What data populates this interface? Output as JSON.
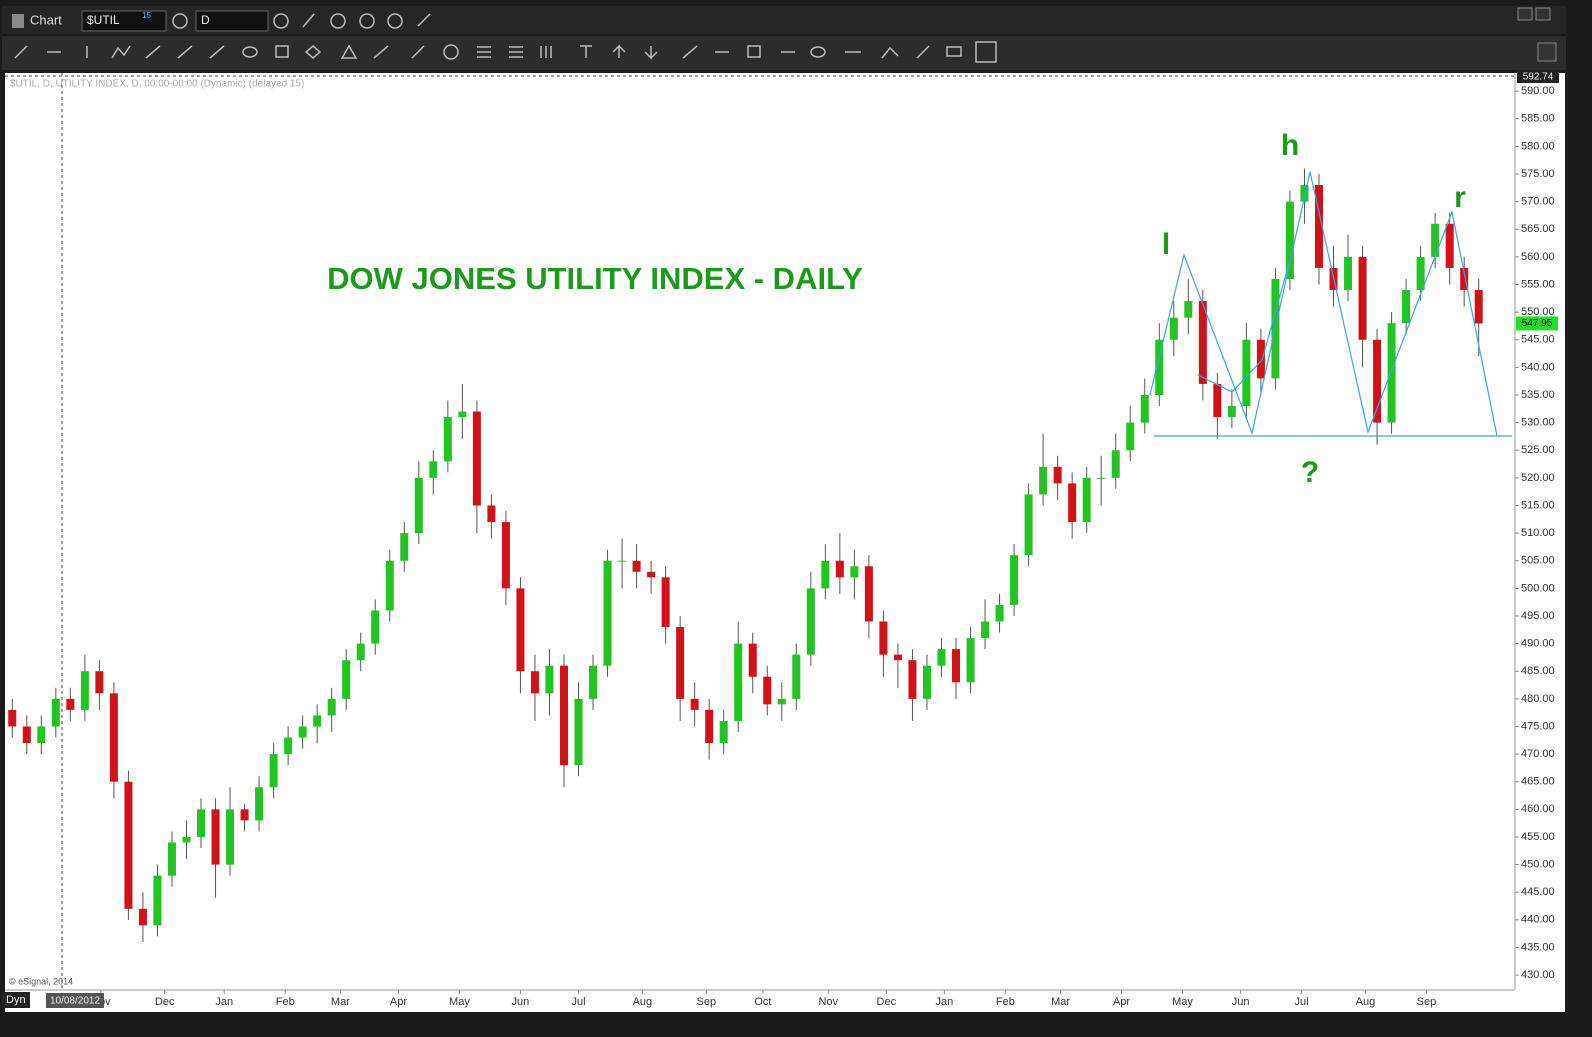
{
  "window": {
    "title": "Chart",
    "symbol": "$UTIL",
    "symbol_delay": "15",
    "interval": "D"
  },
  "chart_data": {
    "type": "candlestick",
    "title": "DOW JONES UTILITY INDEX - DAILY",
    "subtitle": "$UTIL, D, UTILITY INDEX, D, 00:00-00:00 (Dynamic) (delayed 15)",
    "annotations": [
      "l",
      "h",
      "r",
      "?"
    ],
    "footer": {
      "copyright": "© eSignal, 2014",
      "mode": "Dyn",
      "start_date": "10/08/2012"
    },
    "up_color": "#22c322",
    "down_color": "#d0121b",
    "grid": false,
    "xlim": [
      0,
      104
    ],
    "xticks": [
      {
        "value": 6.6,
        "label": "Nov"
      },
      {
        "value": 11.0,
        "label": "Dec"
      },
      {
        "value": 15.1,
        "label": "Jan"
      },
      {
        "value": 19.3,
        "label": "Feb"
      },
      {
        "value": 23.1,
        "label": "Mar"
      },
      {
        "value": 27.1,
        "label": "Apr"
      },
      {
        "value": 31.3,
        "label": "May"
      },
      {
        "value": 35.5,
        "label": "Jun"
      },
      {
        "value": 39.5,
        "label": "Jul"
      },
      {
        "value": 43.9,
        "label": "Aug"
      },
      {
        "value": 48.3,
        "label": "Sep"
      },
      {
        "value": 52.2,
        "label": "Oct"
      },
      {
        "value": 56.7,
        "label": "Nov"
      },
      {
        "value": 60.7,
        "label": "Dec"
      },
      {
        "value": 64.7,
        "label": "Jan"
      },
      {
        "value": 68.9,
        "label": "Feb"
      },
      {
        "value": 72.7,
        "label": "Mar"
      },
      {
        "value": 76.9,
        "label": "Apr"
      },
      {
        "value": 81.1,
        "label": "May"
      },
      {
        "value": 85.1,
        "label": "Jun"
      },
      {
        "value": 89.3,
        "label": "Jul"
      },
      {
        "value": 93.7,
        "label": "Aug"
      },
      {
        "value": 97.9,
        "label": "Sep"
      }
    ],
    "ylim": [
      427.3,
      592.74
    ],
    "yticks": [
      {
        "value": 430,
        "label": "430.00"
      },
      {
        "value": 435,
        "label": "435.00"
      },
      {
        "value": 440,
        "label": "440.00"
      },
      {
        "value": 445,
        "label": "445.00"
      },
      {
        "value": 450,
        "label": "450.00"
      },
      {
        "value": 455,
        "label": "455.00"
      },
      {
        "value": 460,
        "label": "460.00"
      },
      {
        "value": 465,
        "label": "465.00"
      },
      {
        "value": 470,
        "label": "470.00"
      },
      {
        "value": 475,
        "label": "475.00"
      },
      {
        "value": 480,
        "label": "480.00"
      },
      {
        "value": 485,
        "label": "485.00"
      },
      {
        "value": 490,
        "label": "490.00"
      },
      {
        "value": 495,
        "label": "495.00"
      },
      {
        "value": 500,
        "label": "500.00"
      },
      {
        "value": 505,
        "label": "505.00"
      },
      {
        "value": 510,
        "label": "510.00"
      },
      {
        "value": 515,
        "label": "515.00"
      },
      {
        "value": 520,
        "label": "520.00"
      },
      {
        "value": 525,
        "label": "525.00"
      },
      {
        "value": 530,
        "label": "530.00"
      },
      {
        "value": 535,
        "label": "535.00"
      },
      {
        "value": 540,
        "label": "540.00"
      },
      {
        "value": 545,
        "label": "545.00"
      },
      {
        "value": 550,
        "label": "550.00"
      },
      {
        "value": 555,
        "label": "555.00"
      },
      {
        "value": 560,
        "label": "560.00"
      },
      {
        "value": 565,
        "label": "565.00"
      },
      {
        "value": 570,
        "label": "570.00"
      },
      {
        "value": 575,
        "label": "575.00"
      },
      {
        "value": 580,
        "label": "580.00"
      },
      {
        "value": 585,
        "label": "585.00"
      },
      {
        "value": 590,
        "label": "590.00"
      }
    ],
    "candles": [
      [
        478,
        480,
        473,
        475
      ],
      [
        475,
        477,
        470,
        472
      ],
      [
        472,
        477,
        470,
        475
      ],
      [
        475,
        482,
        473,
        480
      ],
      [
        480,
        482,
        476,
        478
      ],
      [
        478,
        488,
        476,
        485
      ],
      [
        485,
        487,
        478,
        481
      ],
      [
        481,
        483,
        462,
        465
      ],
      [
        465,
        467,
        440,
        442
      ],
      [
        442,
        445,
        436,
        439
      ],
      [
        439,
        450,
        437,
        448
      ],
      [
        448,
        456,
        446,
        454
      ],
      [
        454,
        458,
        451,
        455
      ],
      [
        455,
        462,
        453,
        460
      ],
      [
        460,
        462,
        444,
        450
      ],
      [
        450,
        464,
        448,
        460
      ],
      [
        460,
        461,
        456,
        458
      ],
      [
        458,
        466,
        456,
        464
      ],
      [
        464,
        472,
        462,
        470
      ],
      [
        470,
        475,
        468,
        473
      ],
      [
        473,
        477,
        471,
        475
      ],
      [
        475,
        479,
        472,
        477
      ],
      [
        477,
        482,
        474,
        480
      ],
      [
        480,
        489,
        478,
        487
      ],
      [
        487,
        492,
        485,
        490
      ],
      [
        490,
        498,
        488,
        496
      ],
      [
        496,
        507,
        494,
        505
      ],
      [
        505,
        512,
        503,
        510
      ],
      [
        510,
        523,
        508,
        520
      ],
      [
        520,
        525,
        517,
        523
      ],
      [
        523,
        534,
        521,
        531
      ],
      [
        531,
        537,
        527,
        532
      ],
      [
        532,
        534,
        510,
        515
      ],
      [
        515,
        517,
        509,
        512
      ],
      [
        512,
        514,
        497,
        500
      ],
      [
        500,
        502,
        481,
        485
      ],
      [
        485,
        488,
        476,
        481
      ],
      [
        481,
        489,
        477,
        486
      ],
      [
        486,
        488,
        464,
        468
      ],
      [
        468,
        483,
        466,
        480
      ],
      [
        480,
        488,
        478,
        486
      ],
      [
        486,
        507,
        484,
        505
      ],
      [
        505,
        509,
        500,
        505
      ],
      [
        505,
        508,
        500,
        503
      ],
      [
        503,
        505,
        499,
        502
      ],
      [
        502,
        504,
        490,
        493
      ],
      [
        493,
        495,
        476,
        480
      ],
      [
        480,
        483,
        475,
        478
      ],
      [
        478,
        480,
        469,
        472
      ],
      [
        472,
        478,
        470,
        476
      ],
      [
        476,
        494,
        474,
        490
      ],
      [
        490,
        492,
        481,
        484
      ],
      [
        484,
        486,
        477,
        479
      ],
      [
        479,
        483,
        476,
        480
      ],
      [
        480,
        490,
        478,
        488
      ],
      [
        488,
        503,
        486,
        500
      ],
      [
        500,
        508,
        498,
        505
      ],
      [
        505,
        510,
        499,
        502
      ],
      [
        502,
        507,
        498,
        504
      ],
      [
        504,
        506,
        491,
        494
      ],
      [
        494,
        496,
        484,
        488
      ],
      [
        488,
        490,
        482,
        487
      ],
      [
        487,
        489,
        476,
        480
      ],
      [
        480,
        488,
        478,
        486
      ],
      [
        486,
        491,
        484,
        489
      ],
      [
        489,
        491,
        480,
        483
      ],
      [
        483,
        493,
        481,
        491
      ],
      [
        491,
        498,
        489,
        494
      ],
      [
        494,
        499,
        492,
        497
      ],
      [
        497,
        508,
        495,
        506
      ],
      [
        506,
        519,
        504,
        517
      ],
      [
        517,
        528,
        515,
        522
      ],
      [
        522,
        524,
        516,
        519
      ],
      [
        519,
        521,
        509,
        512
      ],
      [
        512,
        522,
        510,
        520
      ],
      [
        520,
        524,
        515,
        520
      ],
      [
        520,
        528,
        518,
        525
      ],
      [
        525,
        533,
        523,
        530
      ],
      [
        530,
        538,
        528,
        535
      ],
      [
        535,
        548,
        533,
        545
      ],
      [
        545,
        552,
        542,
        549
      ],
      [
        549,
        556,
        546,
        552
      ],
      [
        552,
        554,
        534,
        537
      ],
      [
        537,
        539,
        527,
        531
      ],
      [
        531,
        536,
        529,
        533
      ],
      [
        533,
        548,
        531,
        545
      ],
      [
        545,
        547,
        535,
        538
      ],
      [
        538,
        558,
        536,
        556
      ],
      [
        556,
        572,
        554,
        570
      ],
      [
        570,
        576,
        566,
        573
      ],
      [
        573,
        575,
        555,
        558
      ],
      [
        558,
        562,
        551,
        554
      ],
      [
        554,
        564,
        552,
        560
      ],
      [
        560,
        562,
        540,
        545
      ],
      [
        545,
        547,
        526,
        530
      ],
      [
        530,
        550,
        528,
        548
      ],
      [
        548,
        556,
        546,
        554
      ],
      [
        554,
        562,
        552,
        560
      ],
      [
        560,
        568,
        558,
        566
      ],
      [
        566,
        568,
        555,
        558
      ],
      [
        558,
        560,
        551,
        554
      ],
      [
        554,
        556,
        542,
        547.95
      ]
    ]
  }
}
